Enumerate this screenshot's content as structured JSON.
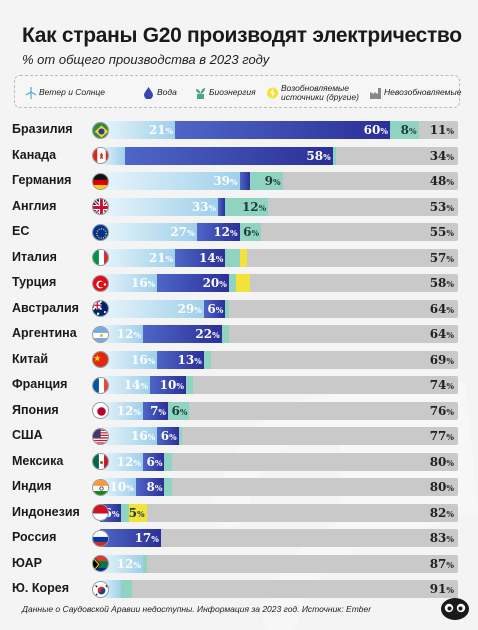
{
  "header": {
    "title": "Как страны G20 производят электричество",
    "subtitle": "% от общего производства в 2023 году"
  },
  "legend": [
    {
      "label": "Ветер и Солнце",
      "icon": "wind-turbine-icon",
      "color": "#9fd0ea"
    },
    {
      "label": "Вода",
      "icon": "water-drop-icon",
      "color": "#3a46b0"
    },
    {
      "label": "Биоэнергия",
      "icon": "plant-icon",
      "color": "#8fd4c0"
    },
    {
      "label": "Возобновляемые источники (другие)",
      "icon": "lightning-icon",
      "color": "#f2e23a"
    },
    {
      "label": "Невозобновляемые",
      "icon": "factory-icon",
      "color": "#c9c9c9"
    }
  ],
  "chart_data": {
    "type": "bar",
    "stacked": true,
    "orientation": "horizontal",
    "title": "Как страны G20 производят электричество",
    "subtitle": "% от общего производства в 2023 году",
    "xlim": [
      0,
      100
    ],
    "categories": [
      "Бразилия",
      "Канада",
      "Германия",
      "Англия",
      "ЕС",
      "Италия",
      "Турция",
      "Австралия",
      "Аргентина",
      "Китай",
      "Франция",
      "Япония",
      "США",
      "Мексика",
      "Индия",
      "Индонезия",
      "Россия",
      "ЮАР",
      "Ю. Корея"
    ],
    "series": [
      {
        "name": "Ветер и Солнце",
        "values": [
          21,
          7,
          39,
          33,
          27,
          21,
          16,
          29,
          12,
          16,
          14,
          12,
          16,
          12,
          10,
          0,
          0,
          12,
          6
        ],
        "labels": [
          "21",
          "",
          "39",
          "33",
          "27",
          "21",
          "16",
          "29",
          "12",
          "16",
          "14",
          "12",
          "16",
          "12",
          "10",
          "",
          "",
          "12",
          ""
        ]
      },
      {
        "name": "Вода",
        "values": [
          60,
          58,
          3,
          2,
          12,
          14,
          20,
          6,
          22,
          13,
          10,
          7,
          6,
          6,
          8,
          6,
          17,
          0,
          0
        ],
        "labels": [
          "60",
          "58",
          "",
          "",
          "12",
          "14",
          "20",
          "6",
          "22",
          "13",
          "10",
          "7",
          "6",
          "6",
          "8",
          "6",
          "17",
          "",
          ""
        ]
      },
      {
        "name": "Биоэнергия",
        "values": [
          8,
          1,
          9,
          12,
          6,
          4,
          2,
          1,
          2,
          2,
          2,
          6,
          1,
          2,
          2,
          2,
          0,
          1,
          3
        ],
        "labels": [
          "8",
          "",
          "9",
          "12",
          "6",
          "",
          "",
          "",
          "",
          "",
          "",
          "6",
          "",
          "",
          "",
          "",
          "",
          "",
          ""
        ]
      },
      {
        "name": "Возобновляемые источники (другие)",
        "values": [
          0,
          0,
          0,
          0,
          0,
          2,
          4,
          0,
          0,
          0,
          0,
          0,
          0,
          0,
          0,
          5,
          0,
          0,
          0
        ],
        "labels": [
          "",
          "",
          "",
          "",
          "",
          "",
          "",
          "",
          "",
          "",
          "",
          "",
          "",
          "",
          "",
          "5",
          "",
          "",
          ""
        ]
      },
      {
        "name": "Невозобновляемые",
        "values": [
          11,
          34,
          48,
          53,
          55,
          57,
          58,
          64,
          64,
          69,
          74,
          76,
          77,
          80,
          80,
          82,
          83,
          87,
          91
        ],
        "labels": [
          "11",
          "34",
          "48",
          "53",
          "55",
          "57",
          "58",
          "64",
          "64",
          "69",
          "74",
          "76",
          "77",
          "80",
          "80",
          "82",
          "83",
          "87",
          "91"
        ]
      }
    ],
    "pct_suffix": "%"
  },
  "footer": {
    "note": "Данные о Саудовской Аравии недоступны. Информация за 2023 год. Источник: Ember"
  }
}
